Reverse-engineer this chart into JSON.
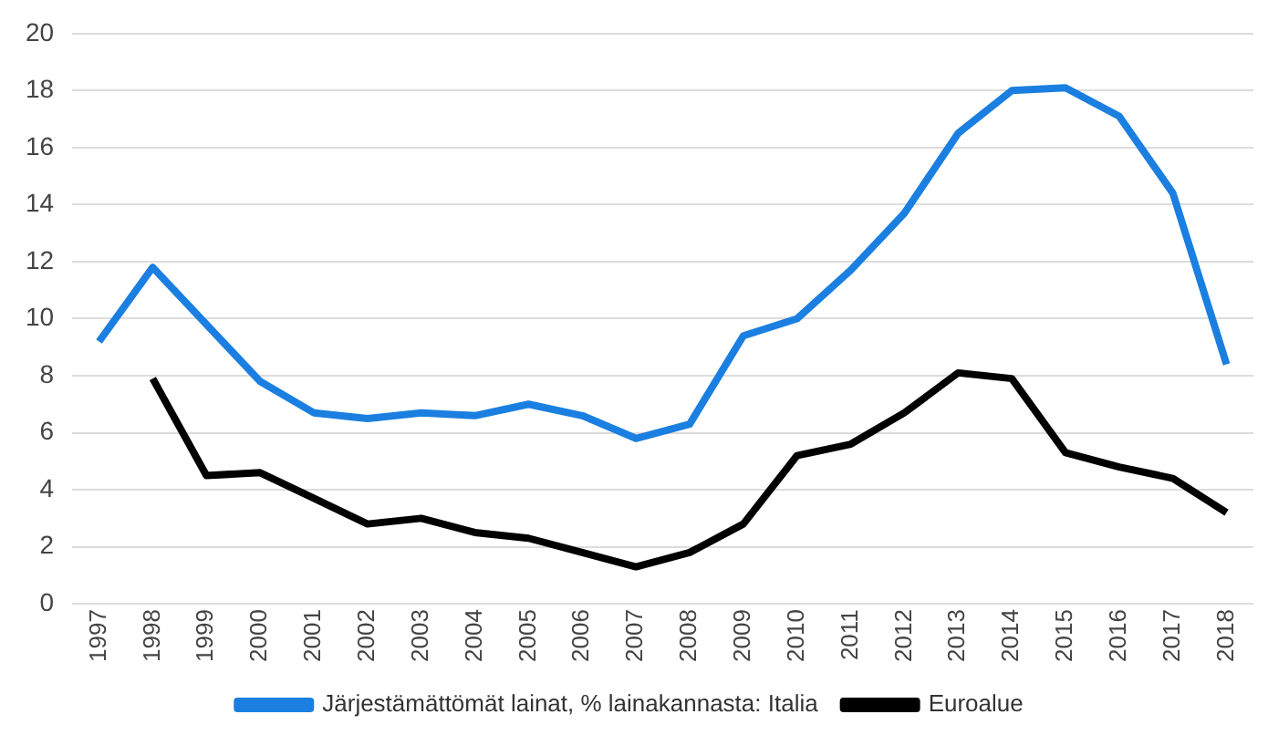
{
  "chart_data": {
    "type": "line",
    "categories": [
      "1997",
      "1998",
      "1999",
      "2000",
      "2001",
      "2002",
      "2003",
      "2004",
      "2005",
      "2006",
      "2007",
      "2008",
      "2009",
      "2010",
      "2011",
      "2012",
      "2013",
      "2014",
      "2015",
      "2016",
      "2017",
      "2018"
    ],
    "series": [
      {
        "name": "Järjestämättömät lainat, % lainakannasta: Italia",
        "color": "#1a7fe0",
        "values": [
          9.2,
          11.8,
          9.8,
          7.8,
          6.7,
          6.5,
          6.7,
          6.6,
          7.0,
          6.6,
          5.8,
          6.3,
          9.4,
          10.0,
          11.7,
          13.7,
          16.5,
          18.0,
          18.1,
          17.1,
          14.4,
          8.4
        ]
      },
      {
        "name": "Euroalue",
        "color": "#000000",
        "values": [
          null,
          7.9,
          4.5,
          4.6,
          3.7,
          2.8,
          3.0,
          2.5,
          2.3,
          1.8,
          1.3,
          1.8,
          2.8,
          5.2,
          5.6,
          6.7,
          8.1,
          7.9,
          5.3,
          4.8,
          4.4,
          3.2
        ]
      }
    ],
    "ylim": [
      0,
      20
    ],
    "yticks": [
      0,
      2,
      4,
      6,
      8,
      10,
      12,
      14,
      16,
      18,
      20
    ],
    "grid": "y",
    "legend": "bottom",
    "marker": "none",
    "line_style": "solid"
  }
}
